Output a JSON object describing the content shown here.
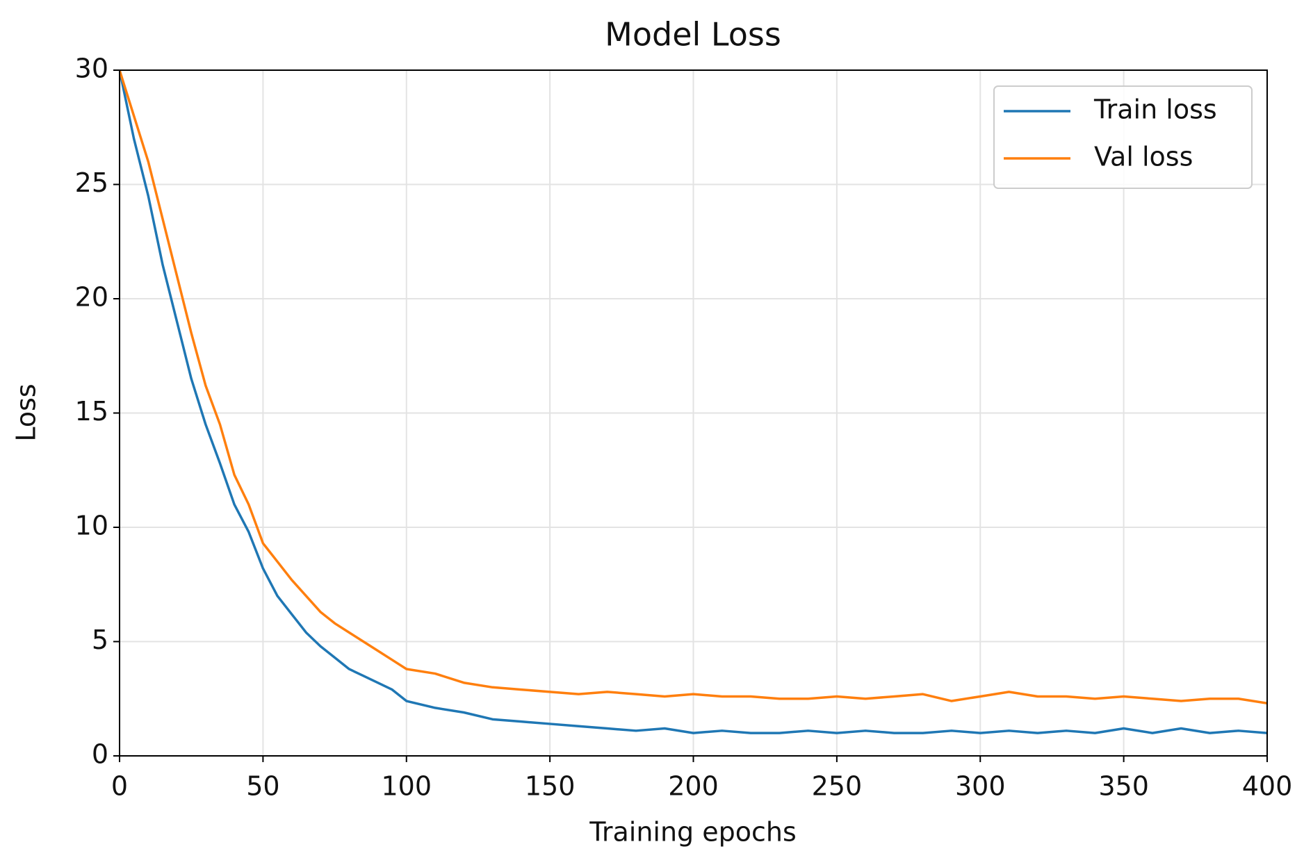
{
  "chart_data": {
    "type": "line",
    "title": "Model Loss",
    "x_label": "Training epochs",
    "y_label": "Loss",
    "x": [
      0,
      5,
      10,
      15,
      20,
      25,
      30,
      35,
      40,
      45,
      50,
      55,
      60,
      65,
      70,
      75,
      80,
      85,
      90,
      95,
      100,
      110,
      120,
      130,
      140,
      150,
      160,
      170,
      180,
      190,
      200,
      210,
      220,
      230,
      240,
      250,
      260,
      270,
      280,
      290,
      300,
      310,
      320,
      330,
      340,
      350,
      360,
      370,
      380,
      390,
      400
    ],
    "series": [
      {
        "name": "Train loss",
        "color": "#1f77b4",
        "values": [
          30,
          27,
          24.5,
          21.5,
          19,
          16.5,
          14.5,
          12.8,
          11,
          9.8,
          8.2,
          7,
          6.2,
          5.4,
          4.8,
          4.3,
          3.8,
          3.5,
          3.2,
          2.9,
          2.4,
          2.1,
          1.9,
          1.6,
          1.5,
          1.4,
          1.3,
          1.2,
          1.1,
          1.2,
          1.0,
          1.1,
          1.0,
          1.0,
          1.1,
          1.0,
          1.1,
          1.0,
          1.0,
          1.1,
          1.0,
          1.1,
          1.0,
          1.1,
          1.0,
          1.2,
          1.0,
          1.2,
          1.0,
          1.1,
          1.0
        ]
      },
      {
        "name": "Val loss",
        "color": "#ff7f0e",
        "values": [
          30,
          28,
          26,
          23.5,
          21,
          18.5,
          16.2,
          14.5,
          12.3,
          11,
          9.3,
          8.5,
          7.7,
          7,
          6.3,
          5.8,
          5.4,
          5,
          4.6,
          4.2,
          3.8,
          3.6,
          3.2,
          3.0,
          2.9,
          2.8,
          2.7,
          2.8,
          2.7,
          2.6,
          2.7,
          2.6,
          2.6,
          2.5,
          2.5,
          2.6,
          2.5,
          2.6,
          2.7,
          2.4,
          2.6,
          2.8,
          2.6,
          2.6,
          2.5,
          2.6,
          2.5,
          2.4,
          2.5,
          2.5,
          2.3
        ]
      }
    ],
    "xlim": [
      0,
      400
    ],
    "xticks": [
      0,
      50,
      100,
      150,
      200,
      250,
      300,
      350,
      400
    ],
    "ylim": [
      0,
      30
    ],
    "yticks": [
      0,
      5,
      10,
      15,
      20,
      25,
      30
    ],
    "grid": true,
    "legend": "upper right"
  }
}
